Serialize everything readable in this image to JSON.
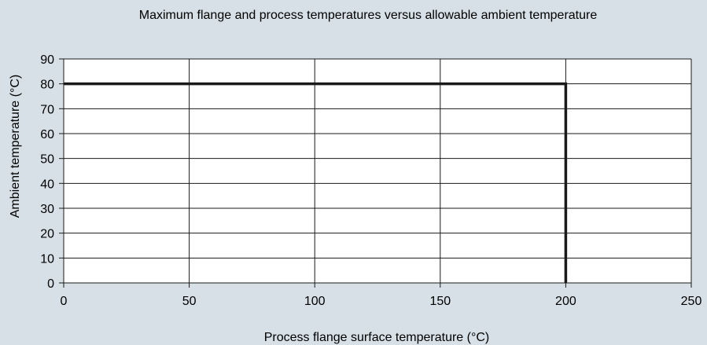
{
  "chart_data": {
    "type": "line",
    "title": "Maximum flange and process temperatures versus allowable ambient temperature",
    "xlabel": "Process flange surface temperature (°C)",
    "ylabel": "Ambient temperature (°C)",
    "xlim": [
      0,
      250
    ],
    "ylim": [
      0,
      90
    ],
    "x_ticks": [
      0,
      50,
      100,
      150,
      200,
      250
    ],
    "y_ticks": [
      0,
      10,
      20,
      30,
      40,
      50,
      60,
      70,
      80,
      90
    ],
    "grid": true,
    "series": [
      {
        "x": [
          0,
          200,
          200
        ],
        "y": [
          80,
          80,
          0
        ]
      }
    ],
    "colors": {
      "background": "#d6e0e6",
      "plot_background": "#ffffff",
      "grid": "#1a1a1a",
      "series": "#1a1a1a"
    }
  }
}
